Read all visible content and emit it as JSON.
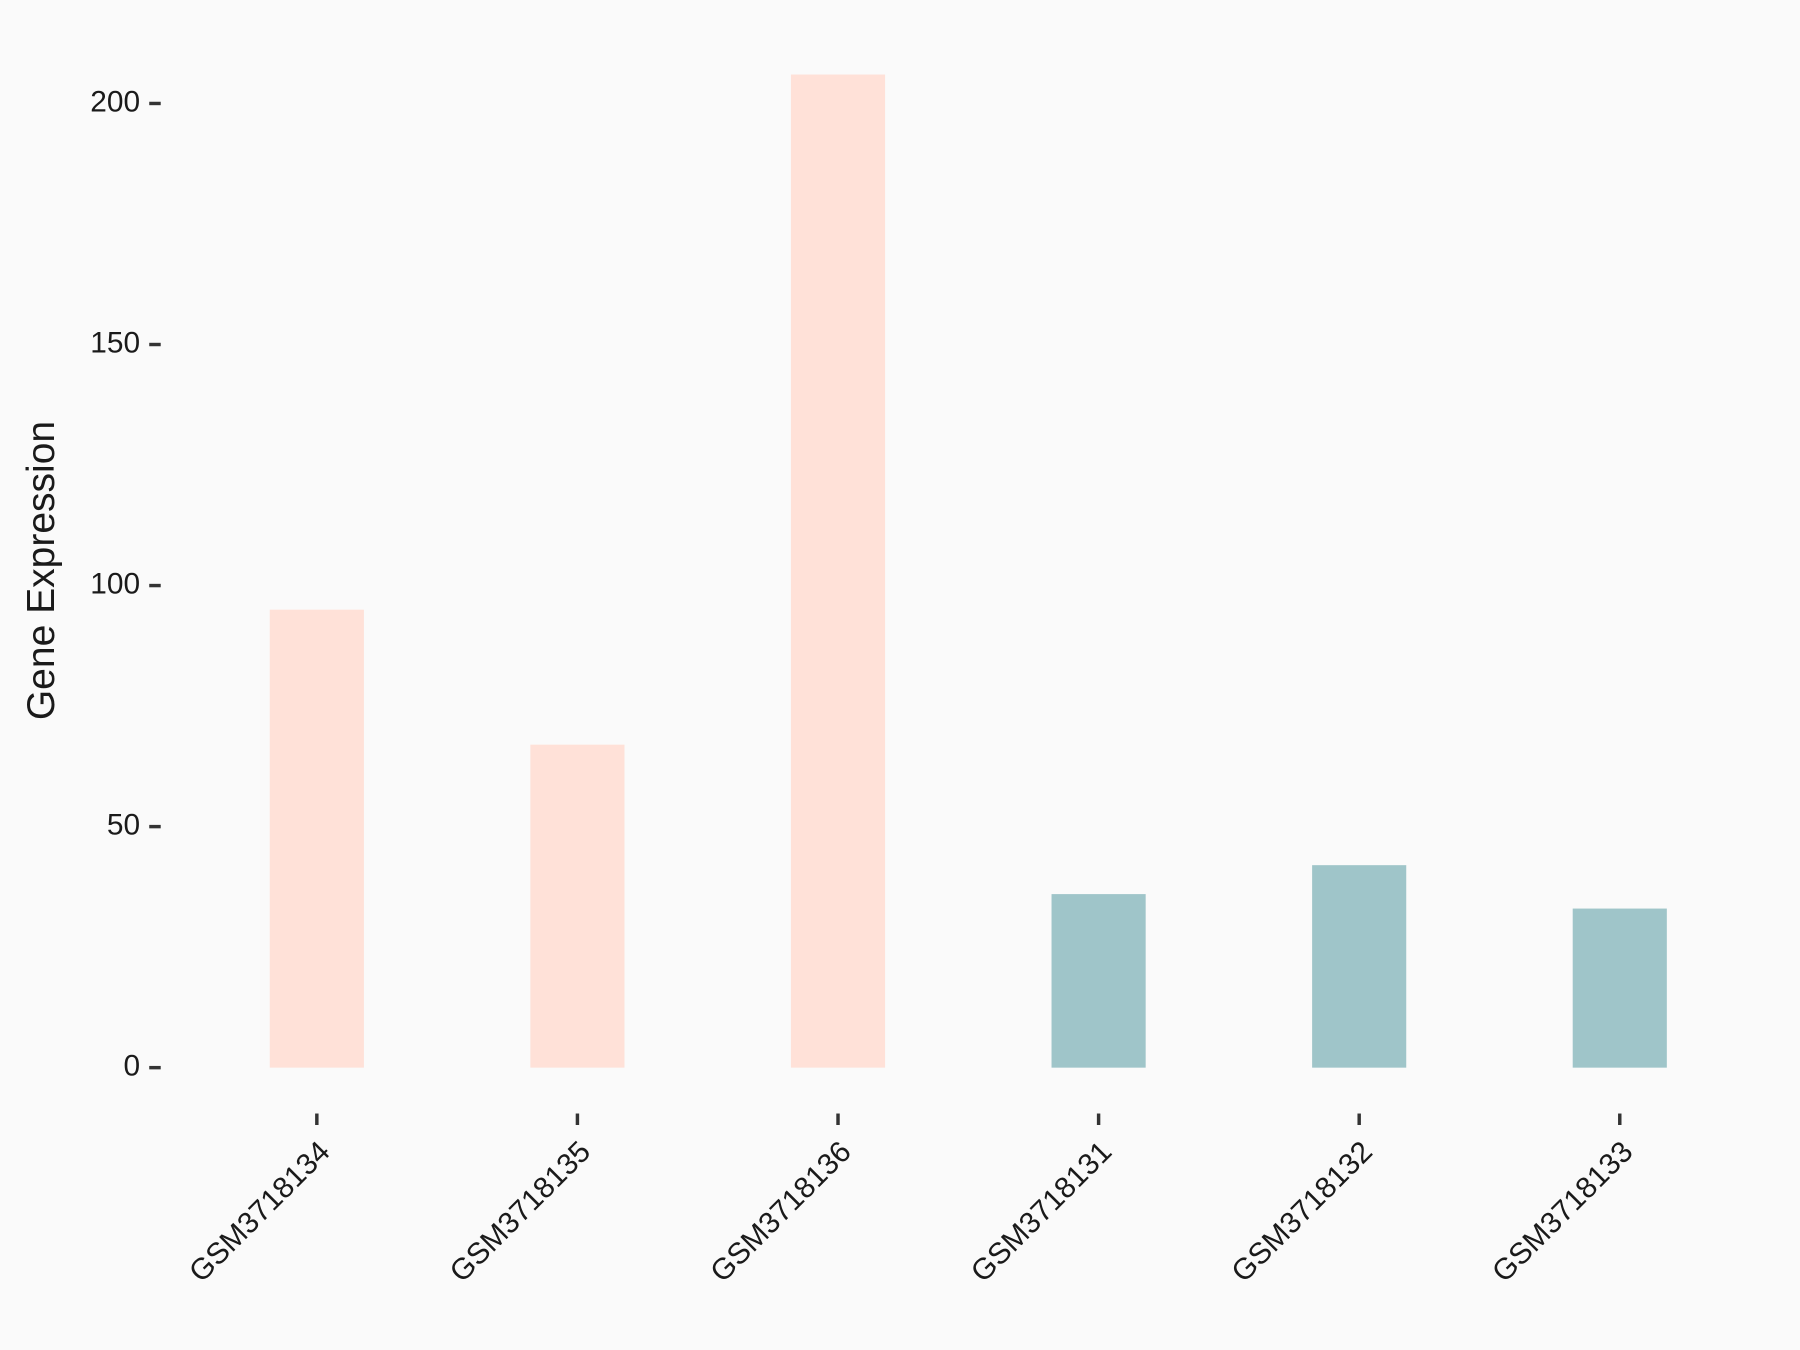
{
  "chart_data": {
    "type": "bar",
    "ylabel": "Gene Expression",
    "categories": [
      "GSM3718134",
      "GSM3718135",
      "GSM3718136",
      "GSM3718131",
      "GSM3718132",
      "GSM3718133"
    ],
    "values": [
      95,
      67,
      206,
      36,
      42,
      33
    ],
    "colors": [
      "#ffe1d8",
      "#ffe1d8",
      "#ffe1d8",
      "#9fc5c9",
      "#9fc5c9",
      "#9fc5c9"
    ],
    "ylim": [
      -10.3,
      216.7
    ],
    "yticks": [
      0,
      50,
      100,
      150,
      200
    ],
    "grid": false
  }
}
